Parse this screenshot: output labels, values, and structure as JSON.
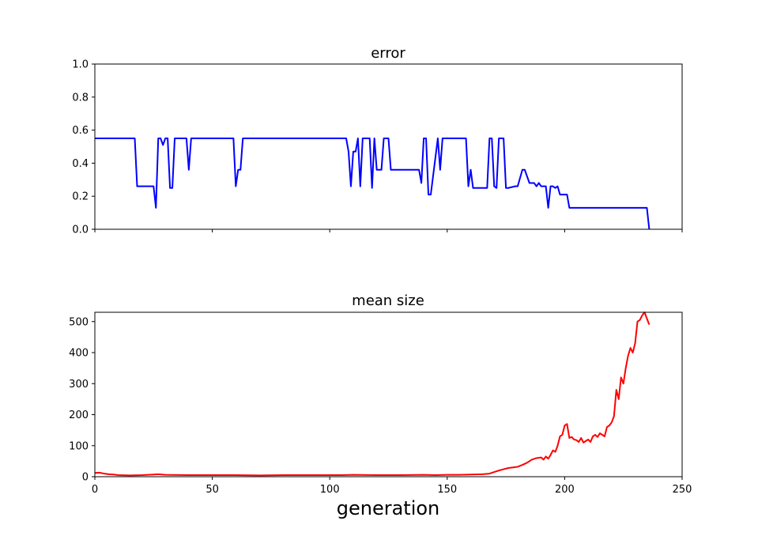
{
  "chart_data": [
    {
      "type": "line",
      "title": "error",
      "xlim": [
        0,
        250
      ],
      "ylim": [
        0,
        1.0
      ],
      "xticks": [
        0,
        50,
        100,
        150,
        200,
        250
      ],
      "show_xtick_labels": false,
      "yticks": [
        0.0,
        0.2,
        0.4,
        0.6,
        0.8,
        1.0
      ],
      "ytick_labels": [
        "0.0",
        "0.2",
        "0.4",
        "0.6",
        "0.8",
        "1.0"
      ],
      "grid": false,
      "color": "#0000ff",
      "series": [
        {
          "x": [
            0,
            17,
            18,
            25,
            26,
            27,
            28,
            29,
            30,
            31,
            32,
            33,
            34,
            39,
            40,
            41,
            59,
            60,
            61,
            62,
            63,
            107,
            108,
            109,
            110,
            111,
            112,
            113,
            114,
            115,
            117,
            118,
            119,
            120,
            121,
            122,
            123,
            125,
            126,
            127,
            128,
            138,
            139,
            140,
            141,
            142,
            143,
            146,
            147,
            148,
            149,
            158,
            159,
            160,
            161,
            162,
            163,
            167,
            168,
            169,
            170,
            171,
            172,
            174,
            175,
            176,
            179,
            180,
            182,
            183,
            185,
            186,
            187,
            188,
            189,
            190,
            191,
            192,
            193,
            194,
            195,
            196,
            197,
            198,
            199,
            200,
            201,
            202,
            203,
            204,
            235,
            236
          ],
          "y": [
            0.55,
            0.55,
            0.26,
            0.26,
            0.13,
            0.55,
            0.55,
            0.51,
            0.55,
            0.55,
            0.25,
            0.25,
            0.55,
            0.55,
            0.36,
            0.55,
            0.55,
            0.26,
            0.36,
            0.36,
            0.55,
            0.55,
            0.47,
            0.26,
            0.47,
            0.47,
            0.55,
            0.26,
            0.55,
            0.55,
            0.55,
            0.25,
            0.55,
            0.36,
            0.36,
            0.36,
            0.55,
            0.55,
            0.36,
            0.36,
            0.36,
            0.36,
            0.28,
            0.55,
            0.55,
            0.21,
            0.21,
            0.55,
            0.36,
            0.55,
            0.55,
            0.55,
            0.26,
            0.36,
            0.25,
            0.25,
            0.25,
            0.25,
            0.55,
            0.55,
            0.26,
            0.25,
            0.55,
            0.55,
            0.25,
            0.25,
            0.26,
            0.26,
            0.36,
            0.36,
            0.28,
            0.28,
            0.28,
            0.26,
            0.28,
            0.26,
            0.26,
            0.26,
            0.13,
            0.26,
            0.26,
            0.25,
            0.26,
            0.21,
            0.21,
            0.21,
            0.21,
            0.13,
            0.13,
            0.13,
            0.13,
            0.0
          ]
        }
      ]
    },
    {
      "type": "line",
      "title": "mean size",
      "xlabel": "generation",
      "xlim": [
        0,
        250
      ],
      "ylim": [
        0,
        530
      ],
      "xticks": [
        0,
        50,
        100,
        150,
        200,
        250
      ],
      "xtick_labels": [
        "0",
        "50",
        "100",
        "150",
        "200",
        "250"
      ],
      "yticks": [
        0,
        100,
        200,
        300,
        400,
        500
      ],
      "ytick_labels": [
        "0",
        "100",
        "200",
        "300",
        "400",
        "500"
      ],
      "grid": false,
      "color": "#ff0000",
      "series": [
        {
          "x": [
            0,
            2,
            4,
            6,
            8,
            10,
            15,
            20,
            25,
            27,
            30,
            40,
            50,
            60,
            70,
            80,
            90,
            100,
            105,
            110,
            120,
            130,
            140,
            145,
            150,
            155,
            160,
            165,
            168,
            170,
            172,
            174,
            176,
            178,
            180,
            182,
            184,
            186,
            188,
            190,
            191,
            192,
            193,
            194,
            195,
            196,
            197,
            198,
            199,
            200,
            201,
            202,
            203,
            204,
            205,
            206,
            207,
            208,
            209,
            210,
            211,
            212,
            213,
            214,
            215,
            216,
            217,
            218,
            219,
            220,
            221,
            222,
            223,
            224,
            225,
            226,
            227,
            228,
            229,
            230,
            231,
            232,
            233,
            234,
            235,
            236
          ],
          "y": [
            12,
            13,
            10,
            8,
            7,
            5,
            4,
            5,
            7,
            8,
            6,
            5,
            5,
            5,
            4,
            5,
            5,
            5,
            5,
            6,
            5,
            5,
            6,
            5,
            6,
            6,
            7,
            8,
            10,
            15,
            20,
            24,
            28,
            30,
            32,
            38,
            45,
            55,
            60,
            62,
            55,
            65,
            58,
            70,
            85,
            80,
            100,
            130,
            135,
            165,
            170,
            125,
            128,
            120,
            118,
            112,
            125,
            110,
            115,
            120,
            112,
            130,
            135,
            128,
            140,
            135,
            130,
            160,
            165,
            175,
            195,
            280,
            250,
            320,
            300,
            350,
            390,
            415,
            400,
            430,
            500,
            505,
            520,
            530,
            510,
            490
          ]
        }
      ]
    }
  ]
}
